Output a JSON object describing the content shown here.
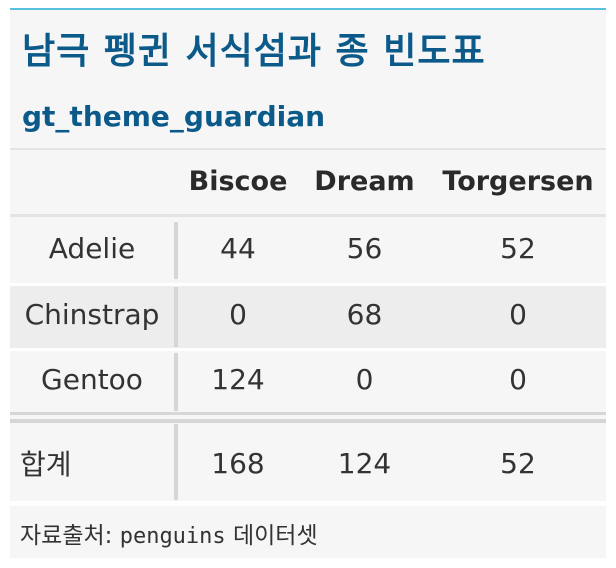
{
  "title": "남극 펭귄 서식섬과 종 빈도표",
  "subtitle": "gt_theme_guardian",
  "columns": [
    "Biscoe",
    "Dream",
    "Torgersen"
  ],
  "rows": [
    {
      "label": "Adelie",
      "values": [
        "44",
        "56",
        "52"
      ]
    },
    {
      "label": "Chinstrap",
      "values": [
        "0",
        "68",
        "0"
      ]
    },
    {
      "label": "Gentoo",
      "values": [
        "124",
        "0",
        "0"
      ]
    }
  ],
  "total": {
    "label": "합계",
    "values": [
      "168",
      "124",
      "52"
    ]
  },
  "footer": {
    "prefix": "자료출처:",
    "code": "penguins",
    "suffix": "데이터셋"
  },
  "colors": {
    "title": "#0b5a8a",
    "accent_line": "#5bc0de",
    "background": "#f6f6f6"
  }
}
